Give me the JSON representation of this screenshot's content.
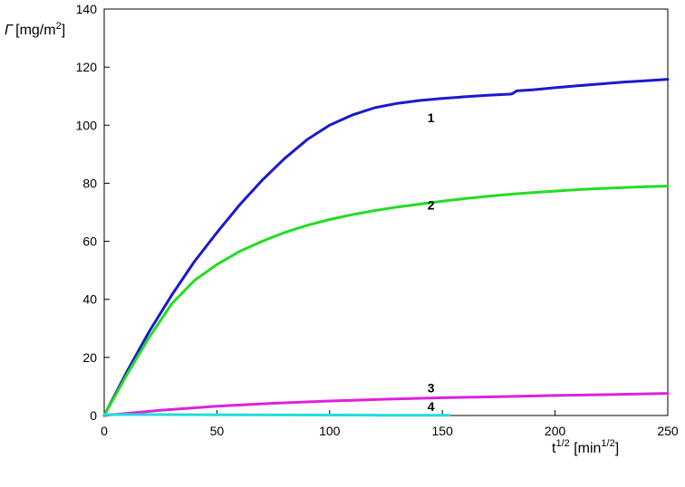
{
  "chart_data": {
    "type": "line",
    "xlim": [
      0,
      250
    ],
    "ylim": [
      0,
      140
    ],
    "x_ticks": [
      0,
      50,
      100,
      150,
      200,
      250
    ],
    "y_ticks": [
      0,
      20,
      40,
      60,
      80,
      100,
      120,
      140
    ],
    "ylabel": {
      "symbol": "Γ",
      "main": "[mg/m",
      "sup": "2",
      "close": "]"
    },
    "xlabel": {
      "main": "t",
      "sup": "1/2",
      "mid": " [min",
      "sup2": "1/2",
      "close": "]"
    },
    "grid": false,
    "series": [
      {
        "label": "1",
        "label_at": [
          145,
          101
        ],
        "color": "#1a1acc",
        "x": [
          0,
          10,
          20,
          30,
          40,
          50,
          60,
          70,
          80,
          90,
          100,
          110,
          120,
          130,
          140,
          150,
          160,
          170,
          180,
          181,
          183,
          190,
          200,
          210,
          220,
          230,
          240,
          250
        ],
        "y": [
          0,
          15,
          29,
          41.5,
          53,
          63,
          72.5,
          81,
          88.5,
          95,
          100,
          103.5,
          106,
          107.5,
          108.5,
          109.2,
          109.8,
          110.3,
          110.7,
          110.8,
          111.8,
          112.2,
          112.9,
          113.6,
          114.2,
          114.8,
          115.3,
          115.8
        ]
      },
      {
        "label": "2",
        "label_at": [
          145,
          71
        ],
        "color": "#22dd22",
        "x": [
          0,
          10,
          20,
          30,
          40,
          50,
          60,
          70,
          80,
          90,
          100,
          110,
          120,
          130,
          140,
          150,
          160,
          170,
          180,
          190,
          200,
          210,
          220,
          230,
          240,
          250
        ],
        "y": [
          0,
          14,
          27,
          38.5,
          46.5,
          52,
          56.5,
          60,
          63,
          65.5,
          67.5,
          69.2,
          70.6,
          71.8,
          72.8,
          73.8,
          74.7,
          75.5,
          76.2,
          76.8,
          77.3,
          77.8,
          78.2,
          78.5,
          78.8,
          79
        ]
      },
      {
        "label": "3",
        "label_at": [
          145,
          8
        ],
        "color": "#dd22dd",
        "x": [
          0,
          25,
          50,
          75,
          100,
          125,
          150,
          175,
          200,
          225,
          250
        ],
        "y": [
          0,
          1.8,
          3.2,
          4.2,
          5,
          5.6,
          6.1,
          6.5,
          6.9,
          7.2,
          7.6
        ]
      },
      {
        "label": "4",
        "label_at": [
          145,
          1.5
        ],
        "color": "#22dddd",
        "x": [
          0,
          25,
          50,
          75,
          100,
          125,
          153
        ],
        "y": [
          0.3,
          0.3,
          0.25,
          0.2,
          0.15,
          0.1,
          0.05
        ]
      }
    ]
  }
}
